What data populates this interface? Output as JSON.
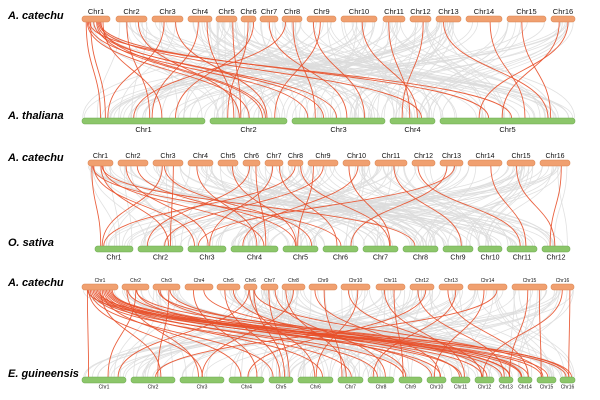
{
  "colors": {
    "top_bar": "#f0a070",
    "top_bar_stroke": "#d9834f",
    "bottom_bar": "#8cc66a",
    "bottom_bar_stroke": "#6aa84f",
    "background_link": "#dcdcdc",
    "highlight_link": "#e8502a"
  },
  "panels": [
    {
      "top_species": "A. catechu",
      "bottom_species": "A. thaliana",
      "top_chrs": [
        "Chr1",
        "Chr2",
        "Chr3",
        "Chr4",
        "Chr5",
        "Chr6",
        "Chr7",
        "Chr8",
        "Chr9",
        "Chr10",
        "Chr11",
        "Chr12",
        "Chr13",
        "Chr14",
        "Chr15",
        "Chr16"
      ],
      "bottom_chrs": [
        "Chr1",
        "Chr2",
        "Chr3",
        "Chr4",
        "Chr5"
      ],
      "highlight_links": [
        [
          0,
          0
        ],
        [
          0,
          1
        ],
        [
          0,
          1
        ],
        [
          0,
          2
        ],
        [
          0,
          2
        ],
        [
          0,
          3
        ],
        [
          0,
          4
        ],
        [
          0,
          4
        ],
        [
          0,
          0
        ],
        [
          0,
          1
        ],
        [
          1,
          0
        ],
        [
          1,
          1
        ],
        [
          2,
          0
        ],
        [
          2,
          1
        ],
        [
          3,
          0
        ],
        [
          4,
          1
        ],
        [
          5,
          1
        ],
        [
          5,
          0
        ],
        [
          6,
          2
        ],
        [
          7,
          0
        ],
        [
          7,
          2
        ],
        [
          8,
          2
        ],
        [
          9,
          3
        ],
        [
          10,
          3
        ],
        [
          11,
          3
        ],
        [
          12,
          4
        ],
        [
          13,
          4
        ],
        [
          15,
          4
        ],
        [
          15,
          4
        ],
        [
          14,
          4
        ],
        [
          0,
          0
        ],
        [
          0,
          2
        ],
        [
          3,
          1
        ],
        [
          8,
          1
        ]
      ]
    },
    {
      "top_species": "A. catechu",
      "bottom_species": "O. sativa",
      "top_chrs": [
        "Chr1",
        "Chr2",
        "Chr3",
        "Chr4",
        "Chr5",
        "Chr6",
        "Chr7",
        "Chr8",
        "Chr9",
        "Chr10",
        "Chr11",
        "Chr12",
        "Chr13",
        "Chr14",
        "Chr15",
        "Chr16"
      ],
      "bottom_chrs": [
        "Chr1",
        "Chr2",
        "Chr3",
        "Chr4",
        "Chr5",
        "Chr6",
        "Chr7",
        "Chr8",
        "Chr9",
        "Chr10",
        "Chr11",
        "Chr12"
      ],
      "highlight_links": [
        [
          0,
          0
        ],
        [
          0,
          1
        ],
        [
          0,
          5
        ],
        [
          0,
          7
        ],
        [
          0,
          2
        ],
        [
          0,
          3
        ],
        [
          1,
          2
        ],
        [
          1,
          4
        ],
        [
          2,
          0
        ],
        [
          2,
          1
        ],
        [
          3,
          3
        ],
        [
          4,
          4
        ],
        [
          5,
          1
        ],
        [
          5,
          3
        ],
        [
          6,
          2
        ],
        [
          6,
          5
        ],
        [
          7,
          0
        ],
        [
          7,
          6
        ],
        [
          8,
          1
        ],
        [
          8,
          4
        ],
        [
          9,
          3
        ],
        [
          9,
          6
        ],
        [
          10,
          8
        ],
        [
          11,
          10
        ],
        [
          12,
          2
        ],
        [
          12,
          5
        ],
        [
          13,
          10
        ],
        [
          14,
          11
        ],
        [
          15,
          11
        ],
        [
          2,
          4
        ]
      ]
    },
    {
      "top_species": "A. catechu",
      "bottom_species": "E. guineensis",
      "top_chrs": [
        "Chr1",
        "Chr2",
        "Chr3",
        "Chr4",
        "Chr5",
        "Chr6",
        "Chr7",
        "Chr8",
        "Chr9",
        "Chr10",
        "Chr11",
        "Chr12",
        "Chr13",
        "Chr14",
        "Chr15",
        "Chr16"
      ],
      "bottom_chrs": [
        "Chr1",
        "Chr2",
        "Chr3",
        "Chr4",
        "Chr5",
        "Chr6",
        "Chr7",
        "Chr8",
        "Chr9",
        "Chr10",
        "Chr11",
        "Chr12",
        "Chr13",
        "Chr14",
        "Chr15",
        "Chr16"
      ],
      "highlight_links": [
        [
          0,
          0
        ],
        [
          0,
          1
        ],
        [
          0,
          2
        ],
        [
          0,
          3
        ],
        [
          0,
          4
        ],
        [
          0,
          5
        ],
        [
          0,
          6
        ],
        [
          0,
          7
        ],
        [
          0,
          8
        ],
        [
          0,
          9
        ],
        [
          0,
          10
        ],
        [
          0,
          11
        ],
        [
          0,
          12
        ],
        [
          0,
          13
        ],
        [
          0,
          14
        ],
        [
          0,
          15
        ],
        [
          0,
          13
        ],
        [
          0,
          12
        ],
        [
          1,
          0
        ],
        [
          1,
          2
        ],
        [
          1,
          9
        ],
        [
          1,
          12
        ],
        [
          2,
          1
        ],
        [
          2,
          10
        ],
        [
          2,
          13
        ],
        [
          3,
          3
        ],
        [
          3,
          11
        ],
        [
          4,
          4
        ],
        [
          4,
          8
        ],
        [
          5,
          0
        ],
        [
          5,
          4
        ],
        [
          5,
          5
        ],
        [
          5,
          14
        ],
        [
          6,
          4
        ],
        [
          6,
          7
        ],
        [
          7,
          2
        ],
        [
          7,
          6
        ],
        [
          8,
          6
        ],
        [
          8,
          9
        ],
        [
          9,
          5
        ],
        [
          9,
          11
        ],
        [
          10,
          8
        ],
        [
          10,
          10
        ],
        [
          11,
          3
        ],
        [
          11,
          12
        ],
        [
          12,
          7
        ],
        [
          12,
          13
        ],
        [
          13,
          1
        ],
        [
          13,
          9
        ],
        [
          14,
          14
        ],
        [
          14,
          12
        ],
        [
          15,
          15
        ],
        [
          15,
          11
        ],
        [
          0,
          14
        ],
        [
          1,
          15
        ],
        [
          2,
          15
        ]
      ]
    }
  ]
}
